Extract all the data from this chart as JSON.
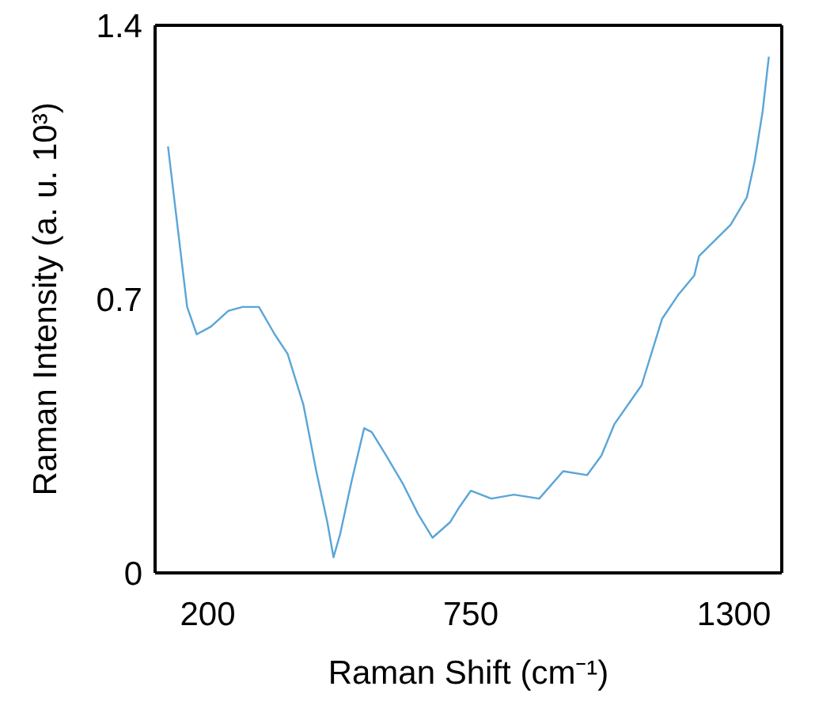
{
  "chart_data": {
    "type": "line",
    "xlabel": "Raman Shift (cm⁻¹)",
    "ylabel": "Raman Intensity (a. u. 10³)",
    "xlim": [
      90,
      1400
    ],
    "xticks": [
      200,
      750,
      1300
    ],
    "ylim": [
      0,
      1.4
    ],
    "yticks": [
      0,
      0.7,
      1.4
    ],
    "grid": false,
    "legend": false,
    "marker": "none",
    "line_style": "solid",
    "series": [
      {
        "color": "#5aa5d8",
        "x": [
          117,
          157,
          177,
          207,
          243,
          273,
          307,
          340,
          367,
          400,
          427,
          450,
          463,
          477,
          500,
          527,
          543,
          573,
          607,
          640,
          670,
          707,
          727,
          750,
          793,
          840,
          893,
          943,
          993,
          1023,
          1050,
          1107,
          1150,
          1183,
          1217,
          1227,
          1293,
          1327,
          1343,
          1360,
          1373
        ],
        "values": [
          1.09,
          0.68,
          0.61,
          0.63,
          0.67,
          0.68,
          0.68,
          0.61,
          0.56,
          0.43,
          0.26,
          0.13,
          0.04,
          0.1,
          0.23,
          0.37,
          0.36,
          0.3,
          0.23,
          0.15,
          0.09,
          0.13,
          0.17,
          0.21,
          0.19,
          0.2,
          0.19,
          0.26,
          0.25,
          0.3,
          0.38,
          0.48,
          0.65,
          0.71,
          0.76,
          0.81,
          0.89,
          0.96,
          1.05,
          1.18,
          1.32
        ]
      }
    ]
  }
}
